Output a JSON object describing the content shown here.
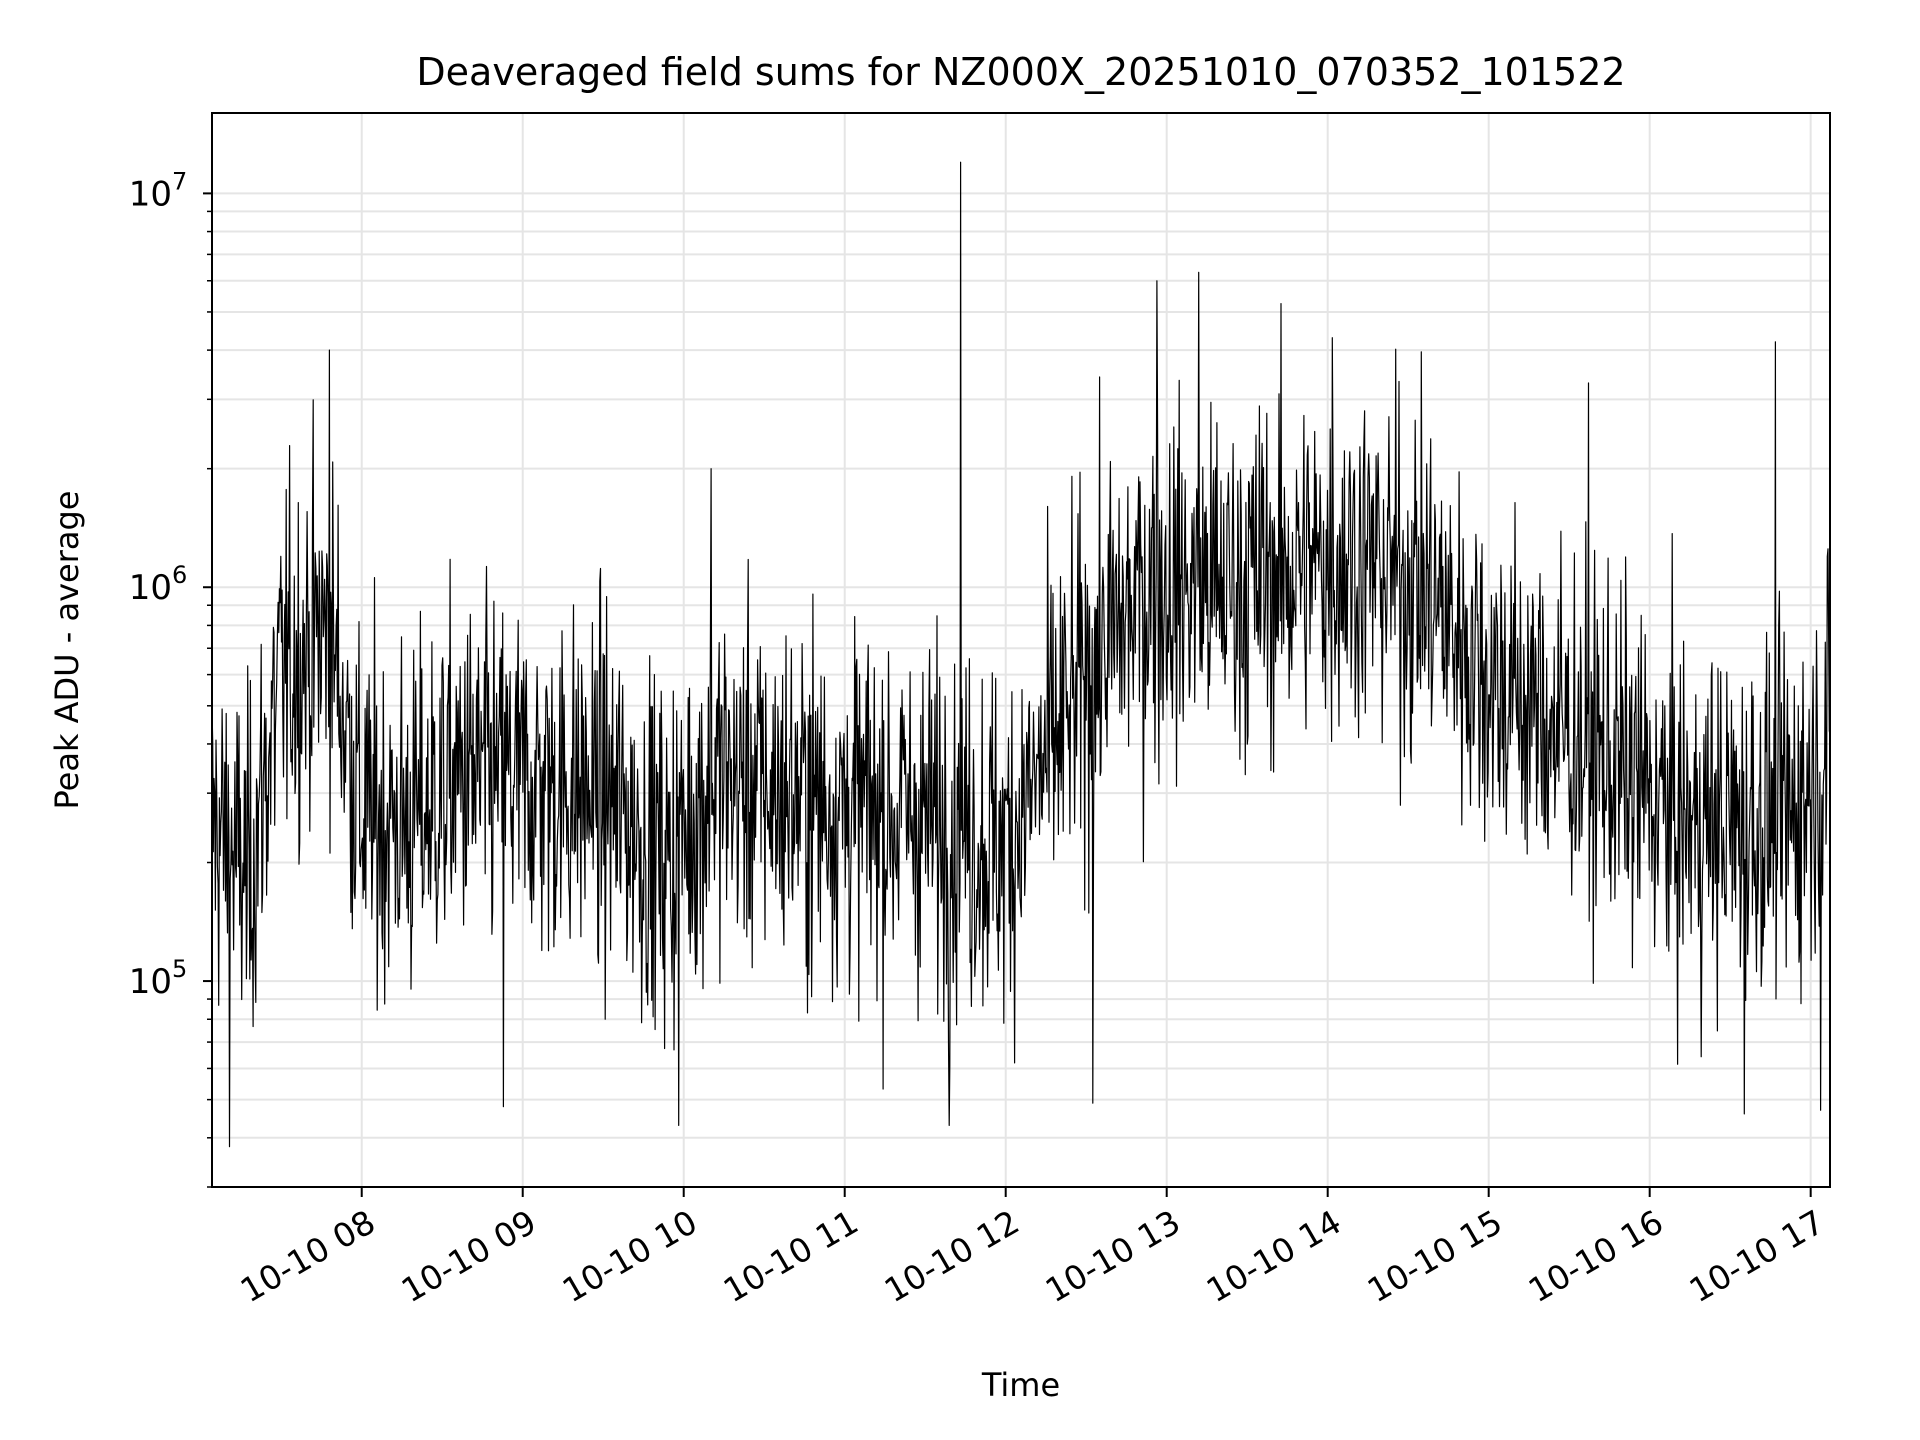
{
  "chart_data": {
    "type": "line",
    "title": "Deaveraged field sums for NZ000X_20251010_070352_101522",
    "xlabel": "Time",
    "ylabel": "Peak ADU - average",
    "yscale": "log",
    "ylim": [
      30000,
      16000000
    ],
    "xlim_hours": [
      7.07,
      17.12
    ],
    "grid": true,
    "line_color": "#000000",
    "grid_color": "#e5e5e5",
    "x_ticks": [
      {
        "hour": 8,
        "label": "10-10 08"
      },
      {
        "hour": 9,
        "label": "10-10 09"
      },
      {
        "hour": 10,
        "label": "10-10 10"
      },
      {
        "hour": 11,
        "label": "10-10 11"
      },
      {
        "hour": 12,
        "label": "10-10 12"
      },
      {
        "hour": 13,
        "label": "10-10 13"
      },
      {
        "hour": 14,
        "label": "10-10 14"
      },
      {
        "hour": 15,
        "label": "10-10 15"
      },
      {
        "hour": 16,
        "label": "10-10 16"
      },
      {
        "hour": 17,
        "label": "10-10 17"
      }
    ],
    "y_ticks": [
      {
        "value": 100000,
        "base": "10",
        "exp": "5"
      },
      {
        "value": 1000000,
        "base": "10",
        "exp": "6"
      },
      {
        "value": 10000000,
        "base": "10",
        "exp": "7"
      }
    ],
    "series": [
      {
        "name": "Peak ADU - average",
        "x_start_hour": 7.07,
        "x_end_hour": 17.12,
        "samples": 2400,
        "envelope_hours": [
          7.07,
          7.3,
          7.5,
          7.8,
          8.0,
          8.3,
          8.6,
          9.0,
          9.5,
          9.9,
          10.2,
          10.6,
          11.0,
          11.5,
          12.0,
          12.3,
          12.6,
          12.9,
          13.3,
          13.7,
          14.2,
          14.6,
          15.0,
          15.4,
          15.8,
          16.2,
          16.6,
          16.9,
          17.12
        ],
        "envelope_median": [
          250000,
          180000,
          600000,
          800000,
          260000,
          250000,
          330000,
          320000,
          300000,
          200000,
          330000,
          300000,
          280000,
          260000,
          220000,
          400000,
          700000,
          1000000,
          1000000,
          1100000,
          1200000,
          1000000,
          600000,
          450000,
          350000,
          250000,
          250000,
          270000,
          400000
        ],
        "spread_decades": 0.42,
        "spikes": [
          {
            "hour": 11.72,
            "value": 12000000
          },
          {
            "hour": 7.18,
            "value": 38000
          },
          {
            "hour": 13.2,
            "value": 6300000
          },
          {
            "hour": 12.94,
            "value": 6000000
          },
          {
            "hour": 7.8,
            "value": 4000000
          },
          {
            "hour": 16.78,
            "value": 4200000
          },
          {
            "hour": 9.97,
            "value": 43000
          },
          {
            "hour": 12.54,
            "value": 49000
          },
          {
            "hour": 16.59,
            "value": 46000
          },
          {
            "hour": 17.06,
            "value": 47000
          },
          {
            "hour": 11.65,
            "value": 43000
          },
          {
            "hour": 8.88,
            "value": 48000
          },
          {
            "hour": 14.03,
            "value": 4300000
          },
          {
            "hour": 10.17,
            "value": 2000000
          },
          {
            "hour": 15.62,
            "value": 3300000
          }
        ]
      }
    ]
  }
}
